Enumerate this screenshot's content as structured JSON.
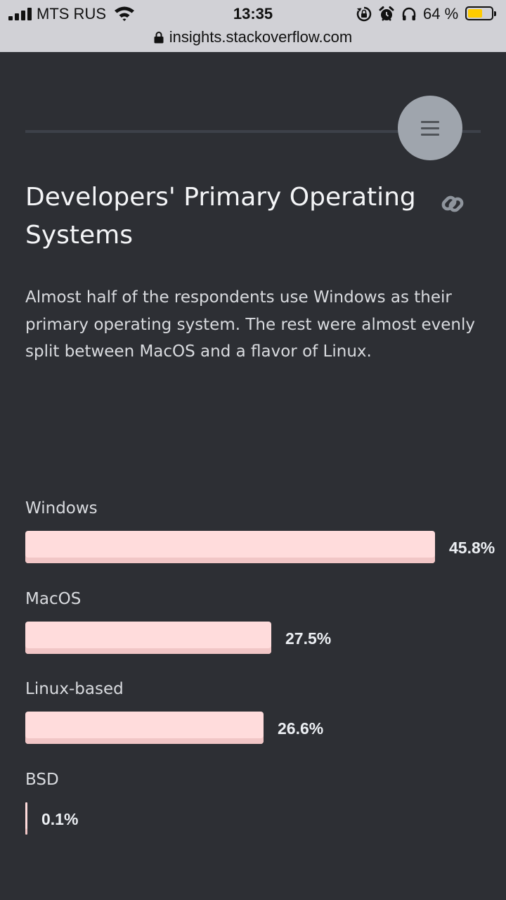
{
  "status_bar": {
    "carrier": "MTS RUS",
    "time": "13:35",
    "battery_percent": "64 %",
    "battery_level": 0.64,
    "icons": [
      "cellular-signal-icon",
      "wifi-icon",
      "rotation-lock-icon",
      "alarm-icon",
      "headphones-icon",
      "battery-icon"
    ]
  },
  "browser": {
    "url": "insights.stackoverflow.com",
    "icons": [
      "lock-icon"
    ]
  },
  "header": {
    "icons": [
      "hamburger-menu-icon",
      "permalink-icon"
    ]
  },
  "section": {
    "title": "Developers' Primary Operating Systems",
    "intro": "Almost half of the respondents use Windows as their primary operating system. The rest were almost evenly split between MacOS and a flavor of Linux."
  },
  "colors": {
    "background": "#2d2f34",
    "bar": "#ffdcdc",
    "bar_shade": "#f1c6c6",
    "text": "#d9dbdf"
  },
  "chart_data": {
    "type": "bar",
    "orientation": "horizontal",
    "categories": [
      "Windows",
      "MacOS",
      "Linux-based",
      "BSD"
    ],
    "values": [
      45.8,
      27.5,
      26.6,
      0.1
    ],
    "value_labels": [
      "45.8%",
      "27.5%",
      "26.6%",
      "0.1%"
    ],
    "unit": "%"
  }
}
